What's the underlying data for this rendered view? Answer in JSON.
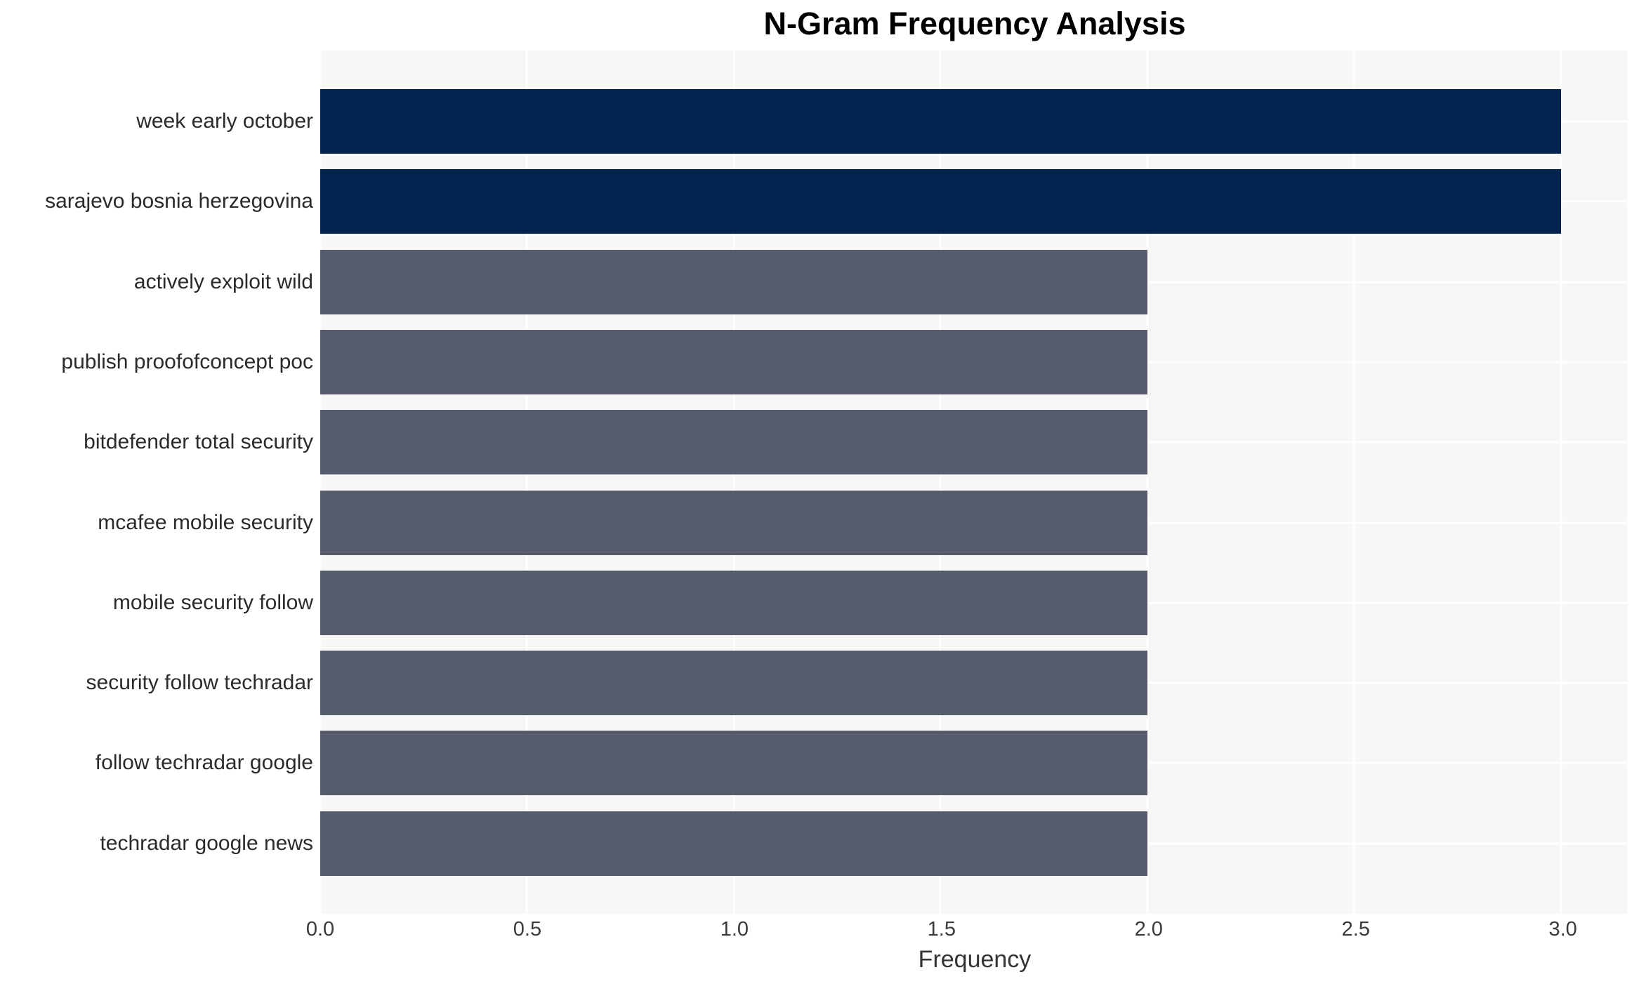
{
  "chart_data": {
    "type": "bar",
    "orientation": "horizontal",
    "title": "N-Gram Frequency Analysis",
    "xlabel": "Frequency",
    "ylabel": "",
    "categories": [
      "week early october",
      "sarajevo bosnia herzegovina",
      "actively exploit wild",
      "publish proofofconcept poc",
      "bitdefender total security",
      "mcafee mobile security",
      "mobile security follow",
      "security follow techradar",
      "follow techradar google",
      "techradar google news"
    ],
    "values": [
      3,
      3,
      2,
      2,
      2,
      2,
      2,
      2,
      2,
      2
    ],
    "bar_colors": [
      "#02234d",
      "#02234d",
      "#565c6b",
      "#565c6b",
      "#565c6b",
      "#565c6b",
      "#565c6b",
      "#565c6b",
      "#565c6b",
      "#565c6b"
    ],
    "xlim": [
      0,
      3.16
    ],
    "xticks": [
      {
        "value": 0.0,
        "label": "0.0"
      },
      {
        "value": 0.5,
        "label": "0.5"
      },
      {
        "value": 1.0,
        "label": "1.0"
      },
      {
        "value": 1.5,
        "label": "1.5"
      },
      {
        "value": 2.0,
        "label": "2.0"
      },
      {
        "value": 2.5,
        "label": "2.5"
      },
      {
        "value": 3.0,
        "label": "3.0"
      }
    ],
    "grid": "white gridlines on light panel, vertical at each x tick and horizontal at each category center",
    "legend_position": "none",
    "colors": {
      "bar_highlight": "#02234d",
      "bar_default": "#565c6b",
      "plot_background": "#f7f7f8",
      "gridline": "#ffffff",
      "title_text": "#000000",
      "label_text": "#2b2b2b",
      "tick_text": "#3a3a3a"
    }
  }
}
